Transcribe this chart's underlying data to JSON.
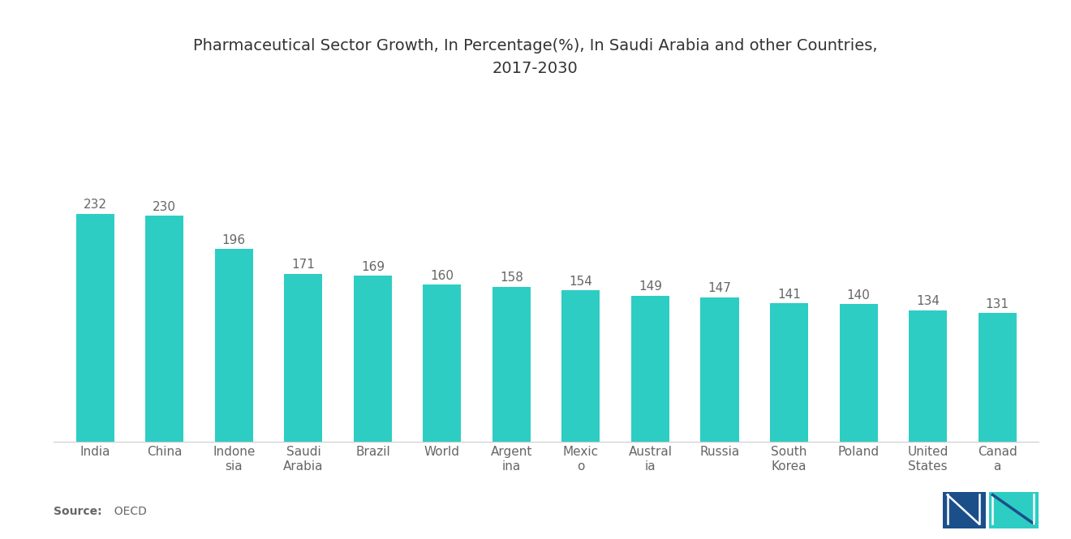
{
  "title": "Pharmaceutical Sector Growth, In Percentage(%), In Saudi Arabia and other Countries,\n2017-2030",
  "categories": [
    "India",
    "China",
    "Indone\nsia",
    "Saudi\nArabia",
    "Brazil",
    "World",
    "Argent\nina",
    "Mexic\no",
    "Austral\nia",
    "Russia",
    "South\nKorea",
    "Poland",
    "United\nStates",
    "Canad\na"
  ],
  "values": [
    232,
    230,
    196,
    171,
    169,
    160,
    158,
    154,
    149,
    147,
    141,
    140,
    134,
    131
  ],
  "bar_color": "#2DCDC4",
  "title_fontsize": 14,
  "label_fontsize": 11,
  "value_fontsize": 11,
  "source_bold": "Source:",
  "source_text": "  OECD",
  "background_color": "#ffffff",
  "ylim": [
    0,
    285
  ],
  "bar_width": 0.55
}
